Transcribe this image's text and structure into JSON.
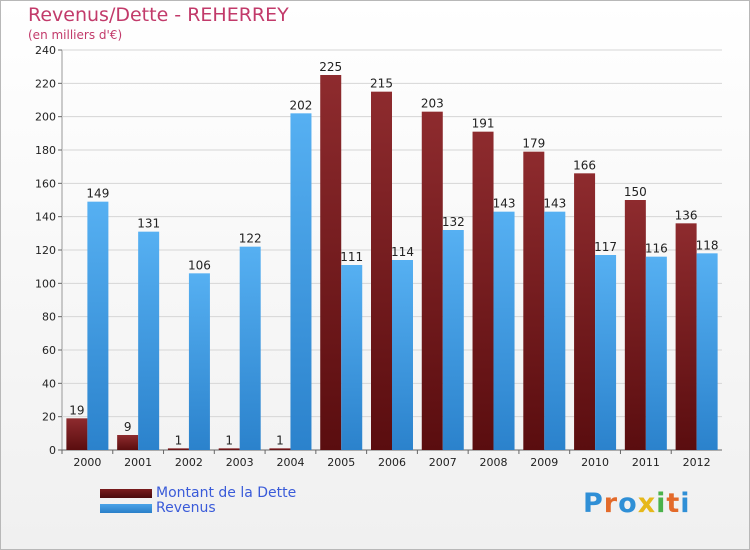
{
  "title": "Revenus/Dette - REHERREY",
  "subtitle": "(en milliers d'€)",
  "legend": [
    {
      "label": "Montant de la Dette",
      "color": "#7a1c1e"
    },
    {
      "label": "Revenus",
      "color": "#4aa3e8"
    }
  ],
  "logo": {
    "text": "Proxiti",
    "colors": [
      "#2f8fd6",
      "#e36a2a",
      "#2f8fd6",
      "#e6b81a",
      "#4bb24b",
      "#e36a2a",
      "#2f8fd6"
    ]
  },
  "chart_data": {
    "type": "bar",
    "categories": [
      "2000",
      "2001",
      "2002",
      "2003",
      "2004",
      "2005",
      "2006",
      "2007",
      "2008",
      "2009",
      "2010",
      "2011",
      "2012"
    ],
    "series": [
      {
        "name": "Montant de la Dette",
        "color": "#7a1c1e",
        "values": [
          19,
          9,
          1,
          1,
          1,
          225,
          215,
          203,
          191,
          179,
          166,
          150,
          136
        ]
      },
      {
        "name": "Revenus",
        "color": "#4aa3e8",
        "values": [
          149,
          131,
          106,
          122,
          202,
          111,
          114,
          132,
          143,
          143,
          117,
          116,
          118
        ]
      }
    ],
    "yticks": [
      0,
      20,
      40,
      60,
      80,
      100,
      120,
      140,
      160,
      180,
      200,
      220,
      240
    ],
    "ylim": [
      0,
      240
    ],
    "grid": true,
    "legend_position": "bottom-left"
  }
}
